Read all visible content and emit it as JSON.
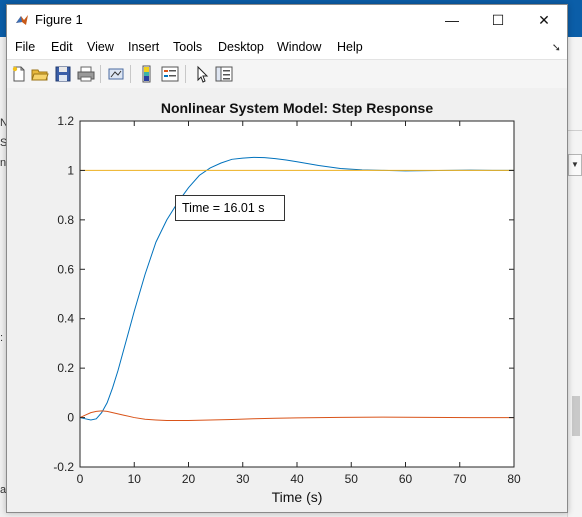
{
  "window": {
    "title": "Figure 1",
    "minimize_glyph": "—",
    "maximize_glyph": "☐",
    "close_glyph": "✕"
  },
  "menu": [
    "File",
    "Edit",
    "View",
    "Insert",
    "Tools",
    "Desktop",
    "Window",
    "Help"
  ],
  "toolbar": {
    "icons": [
      "new-figure-icon",
      "open-file-icon",
      "save-icon",
      "print-icon",
      "link-plot-icon",
      "colorbar-icon",
      "legend-icon",
      "edit-plot-arrow-icon",
      "property-inspector-icon"
    ]
  },
  "background": {
    "fragments": [
      "N",
      "Sy",
      "ne",
      ":",
      "a"
    ]
  },
  "annotation": {
    "text": "Time = 16.01 s"
  },
  "chart_data": {
    "type": "line",
    "title": "Nonlinear System Model: Step Response",
    "xlabel": "Time (s)",
    "ylabel": "",
    "xlim": [
      0,
      80
    ],
    "ylim": [
      -0.2,
      1.2
    ],
    "xticks": [
      0,
      10,
      20,
      30,
      40,
      50,
      60,
      70,
      80
    ],
    "yticks": [
      -0.2,
      0,
      0.2,
      0.4,
      0.6,
      0.8,
      1,
      1.2
    ],
    "xtick_labels": [
      "0",
      "10",
      "20",
      "30",
      "40",
      "50",
      "60",
      "70",
      "80"
    ],
    "ytick_labels": [
      "-0.2",
      "0",
      "0.2",
      "0.4",
      "0.6",
      "0.8",
      "1",
      "1.2"
    ],
    "grid": false,
    "series": [
      {
        "color": "#0072bd",
        "x": [
          0,
          1,
          2,
          3,
          4,
          5,
          6,
          7,
          8,
          9,
          10,
          12,
          14,
          16,
          18,
          20,
          22,
          24,
          26,
          28,
          30,
          32,
          34,
          36,
          38,
          40,
          44,
          48,
          52,
          56,
          60,
          64,
          68,
          72,
          76,
          80
        ],
        "y": [
          0,
          -0.005,
          -0.01,
          -0.005,
          0.02,
          0.06,
          0.12,
          0.19,
          0.27,
          0.35,
          0.43,
          0.58,
          0.71,
          0.8,
          0.87,
          0.93,
          0.98,
          1.01,
          1.03,
          1.045,
          1.05,
          1.053,
          1.052,
          1.048,
          1.042,
          1.035,
          1.02,
          1.008,
          1.002,
          1.0,
          0.998,
          0.999,
          1.0,
          1.001,
          1.0,
          1.0
        ]
      },
      {
        "color": "#d95319",
        "x": [
          0,
          1,
          2,
          3,
          4,
          5,
          6,
          8,
          10,
          12,
          14,
          16,
          18,
          20,
          24,
          28,
          32,
          36,
          40,
          48,
          56,
          64,
          72,
          80
        ],
        "y": [
          0,
          0.01,
          0.02,
          0.025,
          0.027,
          0.025,
          0.02,
          0.01,
          0.0,
          -0.007,
          -0.01,
          -0.012,
          -0.012,
          -0.012,
          -0.01,
          -0.008,
          -0.005,
          -0.003,
          -0.001,
          0.001,
          0.002,
          0.001,
          0.0,
          0.0
        ]
      },
      {
        "color": "#edb120",
        "x": [
          0,
          80
        ],
        "y": [
          1,
          1
        ]
      }
    ]
  }
}
